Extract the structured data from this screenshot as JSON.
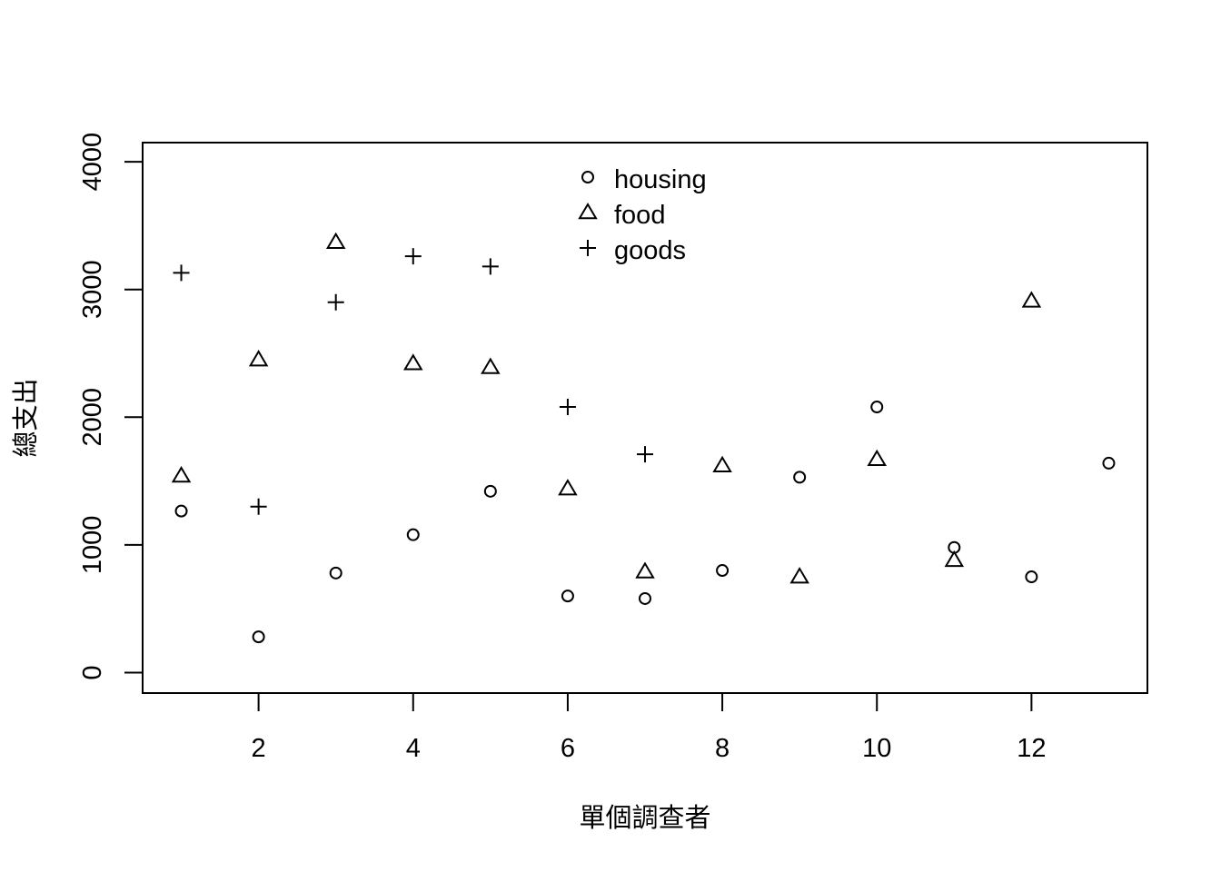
{
  "chart_data": {
    "type": "scatter",
    "title": "",
    "xlabel": "單個調查者",
    "ylabel": "總支出",
    "xlim": [
      0.5,
      13.5
    ],
    "ylim": [
      -160,
      4150
    ],
    "x_ticks": [
      2,
      4,
      6,
      8,
      10,
      12
    ],
    "y_ticks": [
      0,
      1000,
      2000,
      3000,
      4000
    ],
    "grid": false,
    "legend_position": "top-center",
    "series": [
      {
        "name": "housing",
        "marker": "circle",
        "x": [
          1,
          2,
          3,
          4,
          5,
          6,
          7,
          8,
          9,
          10,
          11,
          12,
          13
        ],
        "y": [
          1265,
          280,
          780,
          1080,
          1420,
          600,
          580,
          800,
          1530,
          2080,
          980,
          750,
          1640
        ]
      },
      {
        "name": "food",
        "marker": "triangle",
        "x": [
          1,
          2,
          3,
          4,
          5,
          6,
          7,
          8,
          9,
          10,
          11,
          12
        ],
        "y": [
          1540,
          2450,
          3370,
          2420,
          2390,
          1440,
          790,
          1620,
          750,
          1670,
          880,
          2910
        ]
      },
      {
        "name": "goods",
        "marker": "plus",
        "x": [
          1,
          2,
          3,
          4,
          5,
          6,
          7
        ],
        "y": [
          3130,
          1300,
          2900,
          3260,
          3180,
          2080,
          1710
        ]
      }
    ]
  }
}
